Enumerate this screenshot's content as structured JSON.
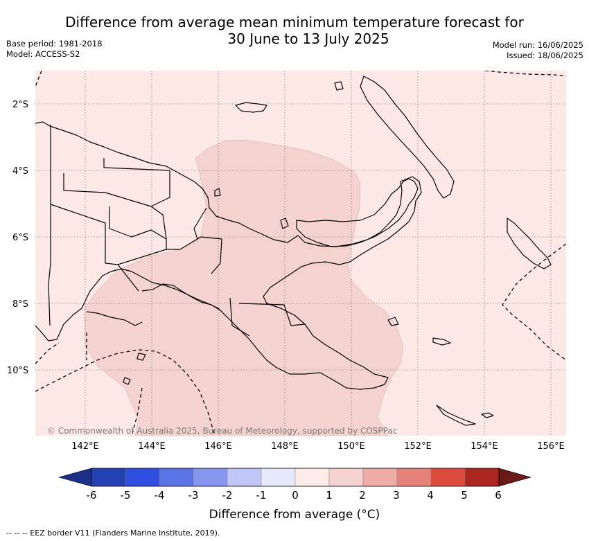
{
  "title_line1": "Difference from average mean minimum temperature forecast for",
  "title_line2": "30 June to 13 July 2025",
  "meta_left": {
    "base_period": "Base period: 1981-2018",
    "model": "Model: ACCESS-S2"
  },
  "meta_right": {
    "model_run": "Model run: 16/06/2025",
    "issued": "Issued: 18/06/2025"
  },
  "map": {
    "lat_labels": [
      "2°S",
      "4°S",
      "6°S",
      "8°S",
      "10°S"
    ],
    "lon_labels": [
      "142°E",
      "144°E",
      "146°E",
      "148°E",
      "150°E",
      "152°E",
      "154°E",
      "156°E"
    ],
    "credit": "© Commonwealth of Australia 2025, Bureau of Meteorology, supported by COSPPac",
    "anomaly_fill_colors": {
      "0_to_1": "#fce9e6",
      "1_to_2": "#f4d2d0"
    }
  },
  "colorbar": {
    "ticks": [
      "-6",
      "-5",
      "-4",
      "-3",
      "-2",
      "-1",
      "0",
      "1",
      "2",
      "3",
      "4",
      "5",
      "6"
    ],
    "colors": [
      "#1e2f8a",
      "#2340b5",
      "#2e4fe0",
      "#5a74e8",
      "#8797ef",
      "#c0c6f5",
      "#e6e9fb",
      "#fcebe8",
      "#f4d2d0",
      "#efaba5",
      "#e5837a",
      "#dc4a3e",
      "#ad2621",
      "#6b1a17"
    ],
    "title": "Difference from average (°C)"
  },
  "footnote": "-- -- -- EEZ border V11 (Flanders Marine Institute, 2019)."
}
